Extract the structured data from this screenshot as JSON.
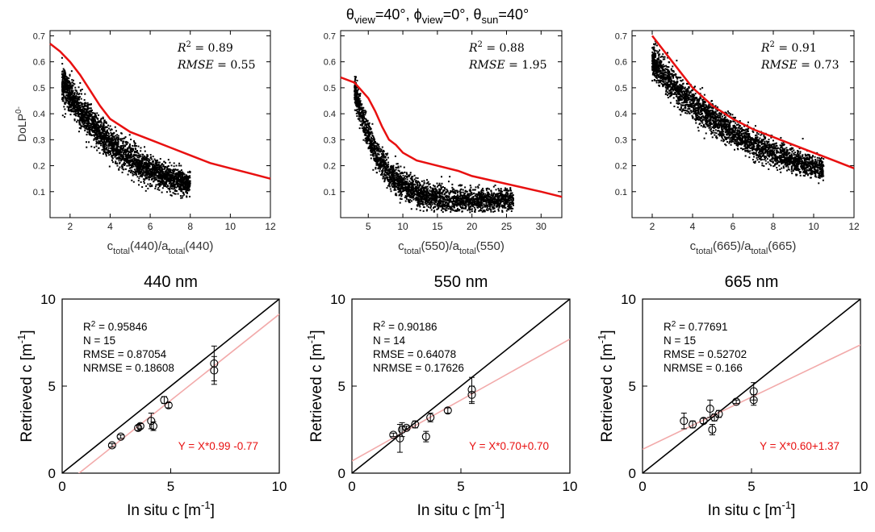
{
  "figure_title": {
    "theta_view": "θ",
    "sub_view": "view",
    "eq_view": "=40°, ",
    "phi_view": "ϕ",
    "sub_view2": "view",
    "eq_phi": "=0°, ",
    "theta_sun": "θ",
    "sub_sun": "sun",
    "eq_sun": "=40°"
  },
  "colors": {
    "scatter": "#000000",
    "fit_red": "#e81010",
    "reg_line": "#f2aaaa",
    "one_to_one": "#000000",
    "eq_text": "#e81010"
  },
  "chart_data": [
    {
      "type": "scatter",
      "panel": "top-440",
      "xlabel": {
        "pre": "c",
        "sub1": "total",
        "mid": "(440)/a",
        "sub2": "total",
        "post": "(440)"
      },
      "ylabel": {
        "main": "DoLP",
        "sup": "0-"
      },
      "xlim": [
        1,
        12
      ],
      "ylim": [
        0,
        0.72
      ],
      "xticks": [
        2,
        4,
        6,
        8,
        10,
        12
      ],
      "yticks": [
        0.1,
        0.2,
        0.3,
        0.4,
        0.5,
        0.6,
        0.7
      ],
      "xtick_labels": [
        "2",
        "4",
        "6",
        "8",
        "10",
        "12"
      ],
      "ytick_labels": [
        "0.1",
        "0.2",
        "0.3",
        "0.4",
        "0.5",
        "0.6",
        "0.7"
      ],
      "stats": {
        "r2_label": "R",
        "r2_value": " = 0.89",
        "rmse_label": "RMSE",
        "rmse_value": " = 0.55"
      },
      "cloud": {
        "x_range": [
          1.6,
          8.0
        ],
        "a": 0.52,
        "b": 0.27,
        "spread": 0.035,
        "n": 2800
      },
      "fit_line": {
        "x": [
          1,
          1.5,
          2,
          2.5,
          3,
          3.5,
          4,
          5,
          6,
          7,
          8,
          9,
          10,
          11,
          12
        ],
        "y": [
          0.67,
          0.64,
          0.6,
          0.55,
          0.49,
          0.43,
          0.38,
          0.33,
          0.3,
          0.27,
          0.24,
          0.21,
          0.19,
          0.17,
          0.15
        ]
      }
    },
    {
      "type": "scatter",
      "panel": "top-550",
      "xlabel": {
        "pre": "c",
        "sub1": "total",
        "mid": "(550)/a",
        "sub2": "total",
        "post": "(550)"
      },
      "ylabel": null,
      "xlim": [
        1,
        33
      ],
      "ylim": [
        0,
        0.72
      ],
      "xticks": [
        5,
        10,
        15,
        20,
        25,
        30
      ],
      "yticks": [
        0.1,
        0.2,
        0.3,
        0.4,
        0.5,
        0.6,
        0.7
      ],
      "xtick_labels": [
        "5",
        "10",
        "15",
        "20",
        "25",
        "30"
      ],
      "ytick_labels": [
        "0.1",
        "0.2",
        "0.3",
        "0.4",
        "0.5",
        "0.6",
        "0.7"
      ],
      "stats": {
        "r2_label": "R",
        "r2_value": " = 0.88",
        "rmse_label": "RMSE",
        "rmse_value": " = 1.95"
      },
      "cloud": {
        "x_range": [
          3.0,
          26.0
        ],
        "a": 0.5,
        "b": 0.24,
        "spread": 0.03,
        "n": 2800
      },
      "fit_line": {
        "x": [
          1,
          3,
          4,
          5,
          6,
          7,
          8,
          9,
          10,
          12,
          15,
          18,
          20,
          25,
          30,
          33
        ],
        "y": [
          0.54,
          0.52,
          0.49,
          0.46,
          0.41,
          0.35,
          0.3,
          0.28,
          0.25,
          0.22,
          0.2,
          0.18,
          0.16,
          0.13,
          0.1,
          0.08
        ]
      }
    },
    {
      "type": "scatter",
      "panel": "top-665",
      "xlabel": {
        "pre": "c",
        "sub1": "total",
        "mid": "(665)/a",
        "sub2": "total",
        "post": "(665)"
      },
      "ylabel": null,
      "xlim": [
        1,
        12
      ],
      "ylim": [
        0,
        0.72
      ],
      "xticks": [
        2,
        4,
        6,
        8,
        10,
        12
      ],
      "yticks": [
        0.1,
        0.2,
        0.3,
        0.4,
        0.5,
        0.6,
        0.7
      ],
      "xtick_labels": [
        "2",
        "4",
        "6",
        "8",
        "10",
        "12"
      ],
      "ytick_labels": [
        "0.1",
        "0.2",
        "0.3",
        "0.4",
        "0.5",
        "0.6",
        "0.7"
      ],
      "stats": {
        "r2_label": "R",
        "r2_value": " = 0.91",
        "rmse_label": "RMSE",
        "rmse_value": " = 0.73"
      },
      "cloud": {
        "x_range": [
          2.0,
          10.5
        ],
        "a": 0.6,
        "b": 0.17,
        "spread": 0.032,
        "n": 3000
      },
      "fit_line": {
        "x": [
          2,
          3,
          4,
          5,
          6,
          7,
          8,
          9,
          10,
          11,
          12
        ],
        "y": [
          0.7,
          0.6,
          0.5,
          0.43,
          0.38,
          0.34,
          0.31,
          0.28,
          0.25,
          0.22,
          0.19
        ]
      }
    },
    {
      "type": "scatter",
      "panel": "bottom-440",
      "title": "440 nm",
      "xlabel": {
        "main": "In situ c [m",
        "sup": "-1",
        "post": "]"
      },
      "ylabel": {
        "main": "Retrieved c [m",
        "sup": "-1",
        "post": "]"
      },
      "xlim": [
        0,
        10
      ],
      "ylim": [
        0,
        10
      ],
      "xticks": [
        0,
        5,
        10
      ],
      "yticks": [
        0,
        5,
        10
      ],
      "xtick_labels": [
        "0",
        "5",
        "10"
      ],
      "ytick_labels": [
        "0",
        "5",
        "10"
      ],
      "stats_lines": [
        "R",
        "2",
        " = 0.95846",
        "N = 15",
        "RMSE = 0.87054",
        "NRMSE = 0.18608"
      ],
      "equation": "Y = X*0.99 -0.77",
      "regression": {
        "slope": 0.99,
        "intercept": -0.77
      },
      "points": [
        {
          "x": 2.3,
          "y": 1.6,
          "err": 0.1
        },
        {
          "x": 2.7,
          "y": 2.1,
          "err": 0.1
        },
        {
          "x": 3.5,
          "y": 2.6,
          "err": 0.15
        },
        {
          "x": 3.6,
          "y": 2.7,
          "err": 0.15
        },
        {
          "x": 4.1,
          "y": 3.0,
          "err": 0.45
        },
        {
          "x": 4.2,
          "y": 2.7,
          "err": 0.25
        },
        {
          "x": 4.7,
          "y": 4.2,
          "err": 0.2
        },
        {
          "x": 4.9,
          "y": 3.9,
          "err": 0.15
        },
        {
          "x": 7.0,
          "y": 6.3,
          "err": 1.0
        },
        {
          "x": 7.0,
          "y": 5.9,
          "err": 0.8
        }
      ]
    },
    {
      "type": "scatter",
      "panel": "bottom-550",
      "title": "550 nm",
      "xlabel": {
        "main": "In situ c [m",
        "sup": "-1",
        "post": "]"
      },
      "ylabel": {
        "main": "Retrieved c [m",
        "sup": "-1",
        "post": "]"
      },
      "xlim": [
        0,
        10
      ],
      "ylim": [
        0,
        10
      ],
      "xticks": [
        0,
        5,
        10
      ],
      "yticks": [
        0,
        5,
        10
      ],
      "xtick_labels": [
        "0",
        "5",
        "10"
      ],
      "ytick_labels": [
        "0",
        "5",
        "10"
      ],
      "stats_lines": [
        "R",
        "2",
        " = 0.90186",
        "N = 14",
        "RMSE = 0.64078",
        "NRMSE = 0.17626"
      ],
      "equation": "Y = X*0.70+0.70",
      "regression": {
        "slope": 0.7,
        "intercept": 0.7
      },
      "points": [
        {
          "x": 1.9,
          "y": 2.2,
          "err": 0.1
        },
        {
          "x": 2.2,
          "y": 2.0,
          "err": 0.8
        },
        {
          "x": 2.3,
          "y": 2.5,
          "err": 0.4
        },
        {
          "x": 2.5,
          "y": 2.6,
          "err": 0.1
        },
        {
          "x": 2.9,
          "y": 2.8,
          "err": 0.2
        },
        {
          "x": 3.4,
          "y": 2.1,
          "err": 0.3
        },
        {
          "x": 3.6,
          "y": 3.2,
          "err": 0.25
        },
        {
          "x": 4.4,
          "y": 3.6,
          "err": 0.15
        },
        {
          "x": 5.5,
          "y": 4.8,
          "err": 0.7
        },
        {
          "x": 5.5,
          "y": 4.5,
          "err": 0.5
        }
      ]
    },
    {
      "type": "scatter",
      "panel": "bottom-665",
      "title": "665 nm",
      "xlabel": {
        "main": "In situ c [m",
        "sup": "-1",
        "post": "]"
      },
      "ylabel": {
        "main": "Retrieved c [m",
        "sup": "-1",
        "post": "]"
      },
      "xlim": [
        0,
        10
      ],
      "ylim": [
        0,
        10
      ],
      "xticks": [
        0,
        5,
        10
      ],
      "yticks": [
        0,
        5,
        10
      ],
      "xtick_labels": [
        "0",
        "5",
        "10"
      ],
      "ytick_labels": [
        "0",
        "5",
        "10"
      ],
      "stats_lines": [
        "R",
        "2",
        " = 0.77691",
        "N = 15",
        "RMSE = 0.52702",
        "NRMSE = 0.166"
      ],
      "equation": "Y = X*0.60+1.37",
      "regression": {
        "slope": 0.6,
        "intercept": 1.37
      },
      "points": [
        {
          "x": 1.9,
          "y": 3.0,
          "err": 0.45
        },
        {
          "x": 2.3,
          "y": 2.8,
          "err": 0.2
        },
        {
          "x": 2.8,
          "y": 3.0,
          "err": 0.15
        },
        {
          "x": 3.1,
          "y": 3.7,
          "err": 0.5
        },
        {
          "x": 3.2,
          "y": 2.5,
          "err": 0.3
        },
        {
          "x": 3.3,
          "y": 3.2,
          "err": 0.2
        },
        {
          "x": 3.5,
          "y": 3.4,
          "err": 0.2
        },
        {
          "x": 4.3,
          "y": 4.1,
          "err": 0.1
        },
        {
          "x": 5.1,
          "y": 4.7,
          "err": 0.5
        },
        {
          "x": 5.1,
          "y": 4.2,
          "err": 0.3
        }
      ]
    }
  ]
}
